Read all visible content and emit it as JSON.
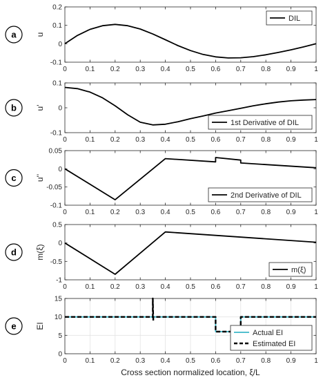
{
  "figure": {
    "xlabel": "Cross section normalized location, ξ/L"
  },
  "chart_data": [
    {
      "type": "line",
      "panel_letter": "a",
      "ylabel": "u",
      "xlim": [
        0,
        1
      ],
      "ylim": [
        -0.1,
        0.2
      ],
      "xticks": [
        "0",
        "0.1",
        "0.2",
        "0.3",
        "0.4",
        "0.5",
        "0.6",
        "0.7",
        "0.8",
        "0.9",
        "1"
      ],
      "yticks": [
        "-0.1",
        "0",
        "0.1",
        "0.2"
      ],
      "legend_position": "top-right",
      "series": [
        {
          "name": "DIL",
          "color": "#000000",
          "dash": "solid",
          "x": [
            0,
            0.05,
            0.1,
            0.15,
            0.2,
            0.25,
            0.3,
            0.35,
            0.4,
            0.45,
            0.5,
            0.55,
            0.6,
            0.65,
            0.7,
            0.75,
            0.8,
            0.85,
            0.9,
            0.95,
            1.0
          ],
          "y": [
            0,
            0.045,
            0.078,
            0.098,
            0.105,
            0.098,
            0.08,
            0.053,
            0.022,
            -0.01,
            -0.037,
            -0.058,
            -0.071,
            -0.077,
            -0.076,
            -0.07,
            -0.06,
            -0.047,
            -0.033,
            -0.017,
            0
          ]
        }
      ]
    },
    {
      "type": "line",
      "panel_letter": "b",
      "ylabel": "u'",
      "xlim": [
        0,
        1
      ],
      "ylim": [
        -0.1,
        0.1
      ],
      "xticks": [
        "0",
        "0.1",
        "0.2",
        "0.3",
        "0.4",
        "0.5",
        "0.6",
        "0.7",
        "0.8",
        "0.9",
        "1"
      ],
      "yticks": [
        "-0.1",
        "0",
        "0.1"
      ],
      "legend_position": "bottom-right",
      "series": [
        {
          "name": "1st Derivative of DIL",
          "color": "#000000",
          "dash": "solid",
          "x": [
            0,
            0.05,
            0.1,
            0.15,
            0.2,
            0.25,
            0.3,
            0.35,
            0.4,
            0.45,
            0.5,
            0.55,
            0.6,
            0.65,
            0.7,
            0.75,
            0.8,
            0.85,
            0.9,
            0.95,
            1.0
          ],
          "y": [
            0.082,
            0.077,
            0.063,
            0.04,
            0.008,
            -0.028,
            -0.058,
            -0.069,
            -0.066,
            -0.056,
            -0.044,
            -0.033,
            -0.021,
            -0.012,
            -0.002,
            0.008,
            0.016,
            0.023,
            0.028,
            0.031,
            0.033
          ]
        }
      ]
    },
    {
      "type": "line",
      "panel_letter": "c",
      "ylabel": "u''",
      "xlim": [
        0,
        1
      ],
      "ylim": [
        -0.1,
        0.05
      ],
      "xticks": [
        "0",
        "0.1",
        "0.2",
        "0.3",
        "0.4",
        "0.5",
        "0.6",
        "0.7",
        "0.8",
        "0.9",
        "1"
      ],
      "yticks": [
        "-0.1",
        "-0.05",
        "0",
        "0.05"
      ],
      "legend_position": "bottom-right",
      "series": [
        {
          "name": "2nd Derivative of DIL",
          "color": "#000000",
          "dash": "solid",
          "x": [
            0,
            0.2,
            0.4,
            0.6,
            0.6,
            0.7,
            0.7,
            1.0
          ],
          "y": [
            0,
            -0.085,
            0.028,
            0.019,
            0.031,
            0.024,
            0.016,
            0.003
          ]
        }
      ]
    },
    {
      "type": "line",
      "panel_letter": "d",
      "ylabel": "m(ξ)",
      "xlim": [
        0,
        1
      ],
      "ylim": [
        -1,
        0.5
      ],
      "xticks": [
        "0",
        "0.1",
        "0.2",
        "0.3",
        "0.4",
        "0.5",
        "0.6",
        "0.7",
        "0.8",
        "0.9",
        "1"
      ],
      "yticks": [
        "-1",
        "-0.5",
        "0",
        "0.5"
      ],
      "legend_position": "bottom-right",
      "series": [
        {
          "name": "m(ξ)",
          "color": "#000000",
          "dash": "solid",
          "x": [
            0,
            0.2,
            0.4,
            1.0
          ],
          "y": [
            0,
            -0.85,
            0.3,
            0.02
          ]
        }
      ]
    },
    {
      "type": "line",
      "panel_letter": "e",
      "ylabel": "EI",
      "xlim": [
        0,
        1
      ],
      "ylim": [
        0,
        15
      ],
      "xticks": [
        "0",
        "0.1",
        "0.2",
        "0.3",
        "0.4",
        "0.5",
        "0.6",
        "0.7",
        "0.8",
        "0.9",
        "1"
      ],
      "yticks": [
        "0",
        "5",
        "10",
        "15"
      ],
      "grid": true,
      "legend_position": "bottom-right",
      "series": [
        {
          "name": "Actual EI",
          "color": "#3ab6c8",
          "dash": "solid",
          "x": [
            0,
            0.6,
            0.6,
            0.7,
            0.7,
            1.0
          ],
          "y": [
            10,
            10,
            6,
            6,
            10,
            10
          ]
        },
        {
          "name": "Estimated EI",
          "color": "#000000",
          "dash": "dashed",
          "x": [
            0,
            0.35,
            0.35,
            0.352,
            0.352,
            0.6,
            0.6,
            0.7,
            0.7,
            1.0
          ],
          "y": [
            10,
            10,
            15,
            8.8,
            10,
            10,
            6,
            6,
            10,
            10
          ]
        }
      ]
    }
  ]
}
